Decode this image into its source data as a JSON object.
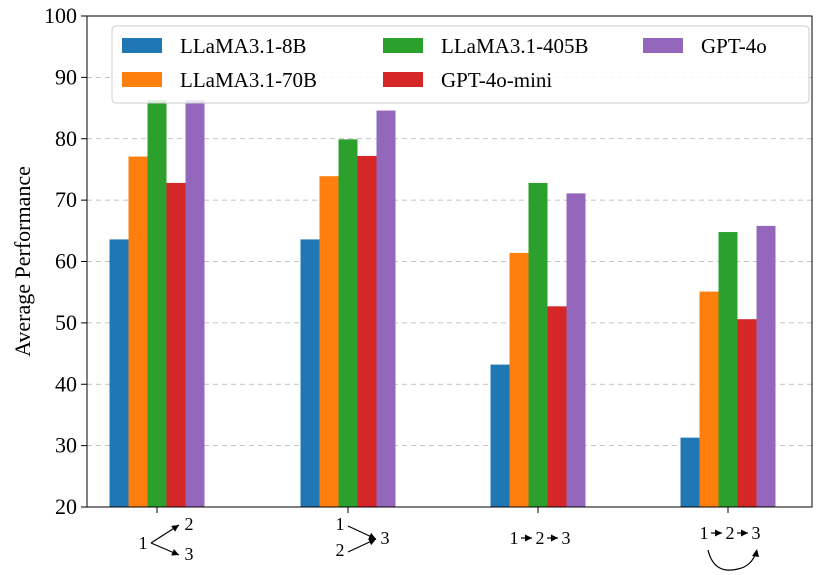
{
  "chart_data": {
    "type": "bar",
    "title": "",
    "xlabel": "",
    "ylabel": "Average Performance",
    "ylim": [
      20,
      100
    ],
    "yticks": [
      "20",
      "30",
      "40",
      "50",
      "60",
      "70",
      "80",
      "90",
      "100"
    ],
    "grid": true,
    "legend_position": "top",
    "categories": [
      {
        "id": "parallel-out",
        "glyphs": [
          "1",
          "2",
          "3"
        ]
      },
      {
        "id": "parallel-in",
        "glyphs": [
          "1",
          "2",
          "3"
        ]
      },
      {
        "id": "sequential",
        "glyphs": [
          "1",
          "2",
          "3"
        ]
      },
      {
        "id": "sequential-loop",
        "glyphs": [
          "1",
          "2",
          "3"
        ]
      }
    ],
    "series": [
      {
        "name": "LLaMA3.1-8B",
        "color": "#1f77b4",
        "values": [
          63.6,
          63.6,
          43.2,
          31.3
        ]
      },
      {
        "name": "LLaMA3.1-70B",
        "color": "#ff7f0e",
        "values": [
          77.1,
          73.9,
          61.4,
          55.1
        ]
      },
      {
        "name": "LLaMA3.1-405B",
        "color": "#2ca02c",
        "values": [
          86.3,
          79.9,
          72.8,
          64.8
        ]
      },
      {
        "name": "GPT-4o-mini",
        "color": "#d62728",
        "values": [
          72.8,
          77.2,
          52.7,
          50.6
        ]
      },
      {
        "name": "GPT-4o",
        "color": "#9467bd",
        "values": [
          86.3,
          84.6,
          71.1,
          65.8
        ]
      }
    ]
  }
}
